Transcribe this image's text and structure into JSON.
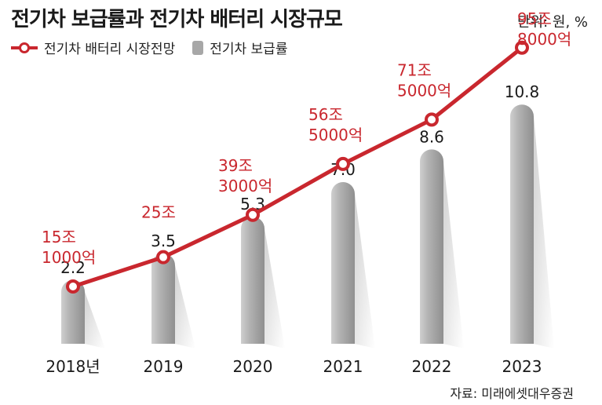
{
  "title": "전기차 보급률과 전기차 배터리 시장규모",
  "unit": "단위: 원, %",
  "source": "자료: 미래에셋대우증권",
  "colors": {
    "line": "#c9272e",
    "bar": "#a7a7a7"
  },
  "chart_data": {
    "type": "bar",
    "categories": [
      "2018년",
      "2019",
      "2020",
      "2021",
      "2022",
      "2023"
    ],
    "series": [
      {
        "name": "전기차 보급률",
        "type": "bar",
        "values": [
          2.2,
          3.5,
          5.3,
          7.0,
          8.6,
          10.8
        ],
        "labels": [
          "2.2",
          "3.5",
          "5.3",
          "7.0",
          "8.6",
          "10.8"
        ]
      },
      {
        "name": "전기차 배터리 시장전망",
        "type": "line",
        "values": [
          151000,
          250000,
          393000,
          565000,
          715000,
          958000
        ],
        "labels": [
          [
            "15조",
            "1000억"
          ],
          [
            "25조"
          ],
          [
            "39조",
            "3000억"
          ],
          [
            "56조",
            "5000억"
          ],
          [
            "71조",
            "5000억"
          ],
          [
            "95조",
            "8000억"
          ]
        ]
      }
    ],
    "legend": [
      "전기차 배터리 시장전망",
      "전기차 보급률"
    ],
    "xlabel": "",
    "ylabel": ""
  }
}
